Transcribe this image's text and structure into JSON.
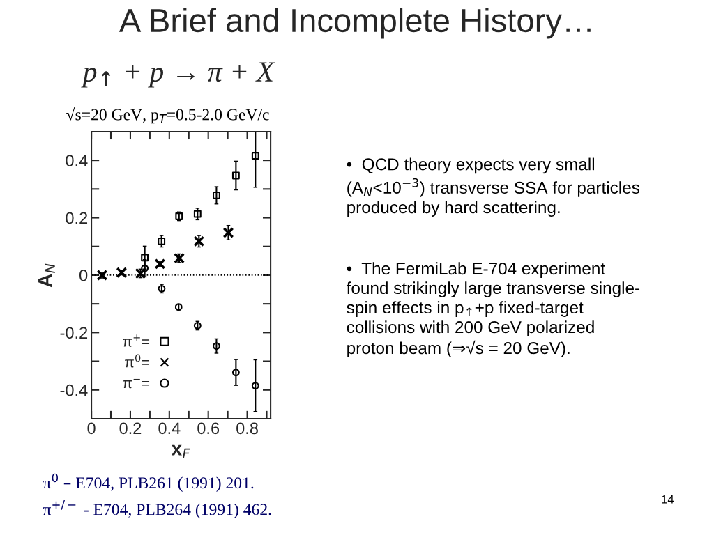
{
  "chart_data": {
    "type": "scatter",
    "title": "A Brief and Incomplete History…",
    "subtitle": "p$_{↑}$ + p → π + X",
    "xlabel": "x$_{F}$",
    "ylabel": "A$_{N}$",
    "xlim": [
      0,
      0.92
    ],
    "ylim": [
      -0.5,
      0.5
    ],
    "xticks": [
      0,
      {
        "value": 0.1,
        "label": null
      },
      0.2,
      {
        "value": 0.3,
        "label": null
      },
      0.4,
      {
        "value": 0.5,
        "label": null
      },
      0.6,
      {
        "value": 0.7,
        "label": null
      },
      0.8,
      {
        "value": 0.9,
        "label": null
      }
    ],
    "yticks": [
      -0.4,
      {
        "value": -0.3,
        "label": null
      },
      -0.2,
      {
        "value": -0.1,
        "label": null
      },
      0,
      {
        "value": 0.1,
        "label": null
      },
      0.2,
      {
        "value": 0.3,
        "label": null
      },
      0.4
    ],
    "grid": false,
    "legend": "lower left",
    "ref_lines": [
      {
        "axis": "y",
        "value": 0,
        "label": null,
        "line_style": "dotted",
        "color": "#000000"
      }
    ],
    "series": [
      {
        "name": "π$^{+}$=",
        "color": "#000000",
        "marker": "square",
        "x": [
          0.274,
          0.36,
          0.45,
          0.545,
          0.642,
          0.742,
          0.842
        ],
        "values": [
          0.061,
          0.118,
          0.205,
          0.213,
          0.278,
          0.347,
          0.416
        ],
        "errors": [
          0.04,
          0.02,
          0.015,
          0.02,
          0.03,
          0.05,
          0.11
        ]
      },
      {
        "name": "π$^{0}$=",
        "color": "#000000",
        "marker": "cross",
        "x": [
          0.055,
          0.155,
          0.252,
          0.352,
          0.451,
          0.552,
          0.703
        ],
        "values": [
          0.0,
          0.009,
          0.006,
          0.039,
          0.059,
          0.118,
          0.148
        ],
        "errors": [
          0.01,
          0.008,
          0.015,
          0.01,
          0.015,
          0.02,
          0.025
        ]
      },
      {
        "name": "π$^{−}$=",
        "color": "#000000",
        "marker": "circle",
        "x": [
          0.274,
          0.361,
          0.448,
          0.545,
          0.642,
          0.742,
          0.842
        ],
        "values": [
          0.024,
          -0.047,
          -0.111,
          -0.176,
          -0.247,
          -0.339,
          -0.385
        ],
        "errors": [
          0.03,
          0.015,
          0.01,
          0.015,
          0.025,
          0.045,
          0.09
        ]
      }
    ],
    "annotations": [
      "√s=20 GeV, p$_{T}$=0.5-2.0 GeV/c",
      "•  QCD theory expects very small\n(A$_{N}$<10$^{−3}$) transverse SSA for particles\nproduced by hard scattering.",
      "•  The FermiLab E-704 experiment\nfound strikingly large transverse single-\nspin effects in p$_{↑}$+p fixed-target\ncollisions with 200 GeV polarized\nproton beam (⇒√s = 20 GeV).",
      "π$^{0}$ – E704, PLB261 (1991) 201.",
      "π$^{+/−}$ - E704, PLB264 (1991) 462.",
      "14"
    ]
  }
}
